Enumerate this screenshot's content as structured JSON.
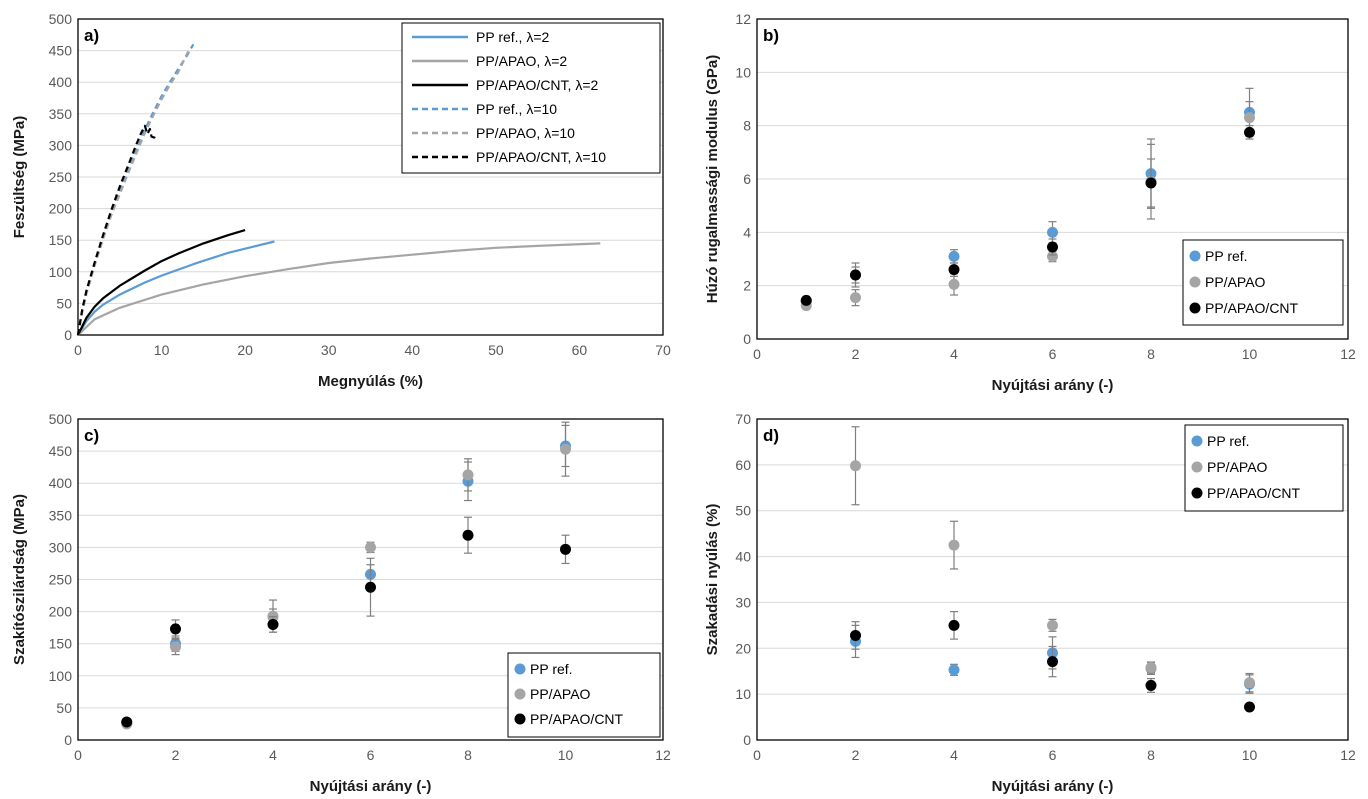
{
  "colors": {
    "pp_ref": "#5b9bd5",
    "pp_apao": "#a5a5a5",
    "pp_apao_cnt": "#000000",
    "grid": "#d9d9d9",
    "frame": "#000000",
    "errorbar": "#7f7f7f"
  },
  "chart_data": [
    {
      "id": "a",
      "type": "line",
      "panel_label": "a)",
      "xlabel": "Megnyúlás (%)",
      "ylabel": "Feszültség (MPa)",
      "xlim": [
        0,
        70
      ],
      "ylim": [
        0,
        500
      ],
      "xticks": [
        0,
        10,
        20,
        30,
        40,
        50,
        60,
        70
      ],
      "yticks": [
        0,
        50,
        100,
        150,
        200,
        250,
        300,
        350,
        400,
        450,
        500
      ],
      "grid": "horizontal",
      "legend": "top-right",
      "series": [
        {
          "name": "PP ref., λ=2",
          "color_key": "pp_ref",
          "dash": "solid",
          "x": [
            0,
            1,
            2,
            3,
            5,
            8,
            10,
            14,
            18,
            23.5
          ],
          "y": [
            0,
            22,
            37,
            48,
            64,
            83,
            94,
            113,
            130,
            148
          ]
        },
        {
          "name": "PP/APAO, λ=2",
          "color_key": "pp_apao",
          "dash": "solid",
          "x": [
            0,
            2,
            5,
            10,
            15,
            20,
            25,
            30,
            35,
            40,
            45,
            50,
            55,
            62.5
          ],
          "y": [
            0,
            25,
            43,
            64,
            80,
            93,
            104,
            114,
            121,
            127,
            133,
            138,
            141,
            145
          ]
        },
        {
          "name": "PP/APAO/CNT, λ=2",
          "color_key": "pp_apao_cnt",
          "dash": "solid",
          "x": [
            0,
            1,
            2,
            3,
            5,
            8,
            10,
            12,
            15,
            18,
            20
          ],
          "y": [
            0,
            27,
            45,
            58,
            78,
            102,
            117,
            129,
            145,
            158,
            166
          ]
        },
        {
          "name": "PP ref., λ=10",
          "color_key": "pp_ref",
          "dash": "dashed",
          "x": [
            0,
            0.5,
            1,
            2,
            3,
            4,
            5,
            6,
            7,
            8,
            9,
            10,
            11,
            12,
            13,
            13.8
          ],
          "y": [
            0,
            38,
            67,
            112,
            155,
            193,
            226,
            260,
            292,
            325,
            352,
            378,
            400,
            421,
            441,
            460
          ]
        },
        {
          "name": "PP/APAO, λ=10",
          "color_key": "pp_apao",
          "dash": "dashed",
          "x": [
            0,
            0.5,
            1,
            2,
            3,
            4,
            5,
            6,
            7,
            8,
            9,
            10,
            11,
            12,
            13.3
          ],
          "y": [
            0,
            36,
            65,
            110,
            152,
            190,
            223,
            256,
            288,
            320,
            347,
            373,
            396,
            416,
            452
          ]
        },
        {
          "name": "PP/APAO/CNT, λ=10",
          "color_key": "pp_apao_cnt",
          "dash": "dashed",
          "x": [
            0,
            0.5,
            1,
            2,
            3,
            4,
            5,
            6,
            7,
            7.5,
            8,
            8.3,
            8.6,
            8.8,
            9.2,
            9.5
          ],
          "y": [
            0,
            40,
            70,
            115,
            158,
            198,
            235,
            268,
            302,
            318,
            331,
            318,
            326,
            314,
            312,
            307
          ]
        }
      ]
    },
    {
      "id": "b",
      "type": "scatter",
      "panel_label": "b)",
      "xlabel": "Nyújtási arány (-)",
      "ylabel": "Húzó rugalmassági modulus (GPa)",
      "xlim": [
        0,
        12
      ],
      "ylim": [
        0,
        12
      ],
      "xticks": [
        0,
        2,
        4,
        6,
        8,
        10,
        12
      ],
      "yticks": [
        0,
        2,
        4,
        6,
        8,
        10,
        12
      ],
      "grid": "horizontal",
      "legend": "bottom-right",
      "series": [
        {
          "name": "PP ref.",
          "color_key": "pp_ref",
          "x": [
            1,
            2,
            4,
            6,
            8,
            10
          ],
          "y": [
            1.4,
            2.4,
            3.1,
            4.0,
            6.2,
            8.5
          ],
          "err": [
            0.1,
            0.3,
            0.25,
            0.4,
            1.3,
            0.9
          ]
        },
        {
          "name": "PP/APAO",
          "color_key": "pp_apao",
          "x": [
            1,
            2,
            4,
            6,
            8,
            10
          ],
          "y": [
            1.25,
            1.55,
            2.05,
            3.1,
            5.9,
            8.3
          ],
          "err": [
            0.1,
            0.3,
            0.4,
            0.2,
            1.4,
            0.6
          ]
        },
        {
          "name": "PP/APAO/CNT",
          "color_key": "pp_apao_cnt",
          "x": [
            1,
            2,
            4,
            6,
            8,
            10
          ],
          "y": [
            1.45,
            2.4,
            2.6,
            3.45,
            5.85,
            7.75
          ],
          "err": [
            0.1,
            0.45,
            0.25,
            0.3,
            0.9,
            0.25
          ]
        }
      ]
    },
    {
      "id": "c",
      "type": "scatter",
      "panel_label": "c)",
      "xlabel": "Nyújtási arány (-)",
      "ylabel": "Szakítószilárdság (MPa)",
      "xlim": [
        0,
        12
      ],
      "ylim": [
        0,
        500
      ],
      "xticks": [
        0,
        2,
        4,
        6,
        8,
        10,
        12
      ],
      "yticks": [
        0,
        50,
        100,
        150,
        200,
        250,
        300,
        350,
        400,
        450,
        500
      ],
      "grid": "horizontal",
      "legend": "bottom-right",
      "series": [
        {
          "name": "PP ref.",
          "color_key": "pp_ref",
          "x": [
            1,
            2,
            4,
            6,
            8,
            10
          ],
          "y": [
            27,
            150,
            192,
            258,
            403,
            458
          ],
          "err": [
            4,
            12,
            12,
            15,
            30,
            32
          ]
        },
        {
          "name": "PP/APAO",
          "color_key": "pp_apao",
          "x": [
            1,
            2,
            4,
            6,
            8,
            10
          ],
          "y": [
            25,
            145,
            193,
            300,
            413,
            453
          ],
          "err": [
            4,
            12,
            25,
            8,
            25,
            42
          ]
        },
        {
          "name": "PP/APAO/CNT",
          "color_key": "pp_apao_cnt",
          "x": [
            1,
            2,
            4,
            6,
            8,
            10
          ],
          "y": [
            28,
            173,
            180,
            238,
            319,
            297
          ],
          "err": [
            4,
            14,
            12,
            45,
            28,
            22
          ]
        }
      ]
    },
    {
      "id": "d",
      "type": "scatter",
      "panel_label": "d)",
      "xlabel": "Nyújtási arány (-)",
      "ylabel": "Szakadási nyúlás (%)",
      "xlim": [
        0,
        12
      ],
      "ylim": [
        0,
        70
      ],
      "xticks": [
        0,
        2,
        4,
        6,
        8,
        10,
        12
      ],
      "yticks": [
        0,
        10,
        20,
        30,
        40,
        50,
        60,
        70
      ],
      "grid": "horizontal",
      "legend": "top-right",
      "series": [
        {
          "name": "PP ref.",
          "color_key": "pp_ref",
          "x": [
            2,
            4,
            6,
            8,
            10
          ],
          "y": [
            21.5,
            15.3,
            19.0,
            15.6,
            12.2
          ],
          "err": [
            3.5,
            1.2,
            3.5,
            1.3,
            2.0
          ]
        },
        {
          "name": "PP/APAO",
          "color_key": "pp_apao",
          "x": [
            2,
            4,
            6,
            8,
            10
          ],
          "y": [
            59.8,
            42.5,
            25.0,
            15.8,
            12.5
          ],
          "err": [
            8.5,
            5.2,
            1.3,
            1.2,
            2.0
          ]
        },
        {
          "name": "PP/APAO/CNT",
          "color_key": "pp_apao_cnt",
          "x": [
            2,
            4,
            6,
            8,
            10
          ],
          "y": [
            22.8,
            25.0,
            17.1,
            11.9,
            7.2
          ],
          "err": [
            3.0,
            3.0,
            3.3,
            1.5,
            0.6
          ]
        }
      ]
    }
  ]
}
